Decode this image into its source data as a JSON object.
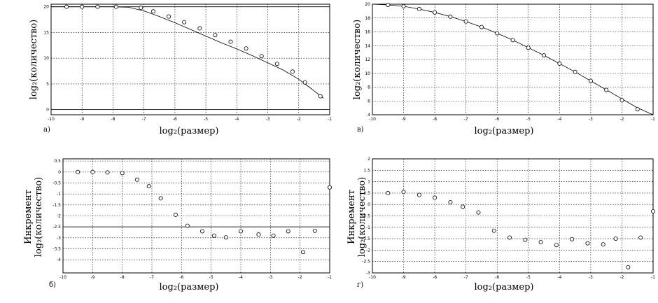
{
  "chart_data": [
    {
      "type": "line",
      "panel_label": "а)",
      "xlabel": "log₂(размер)",
      "ylabel": "log₂(количество)",
      "xlim": [
        -10,
        -1
      ],
      "ylim": [
        -1,
        20.5
      ],
      "xticks": [
        -10,
        -9,
        -8,
        -7,
        -6,
        -5,
        -4,
        -3,
        -2,
        -1
      ],
      "yticks": [
        0,
        5,
        10,
        15,
        20
      ],
      "xtick_labels": [
        "-10",
        "-9",
        "-8",
        "-7",
        "-6",
        "-5",
        "-4",
        "-3",
        "-2",
        "-1"
      ],
      "ytick_labels": [
        "0",
        "5",
        "10",
        "15",
        "20"
      ],
      "grid": true,
      "hlines": [
        20,
        0
      ],
      "series": [
        {
          "x": [
            -10,
            -9.5,
            -9,
            -8.5,
            -8,
            -7.5,
            -7,
            -6.5,
            -6,
            -5.5,
            -5,
            -4.5,
            -4,
            -3.5,
            -3,
            -2.5,
            -2,
            -1.6,
            -1.2
          ],
          "y": [
            20,
            20,
            20,
            20,
            20,
            19.9,
            19.2,
            18.1,
            16.9,
            15.6,
            14.3,
            13,
            11.8,
            10.5,
            9.1,
            7.7,
            5.9,
            4.1,
            2.2
          ]
        }
      ],
      "markers": {
        "x": [
          -9.5,
          -9,
          -8.5,
          -7.9,
          -7.1,
          -6.7,
          -6.2,
          -5.7,
          -5.2,
          -4.7,
          -4.2,
          -3.7,
          -3.2,
          -2.7,
          -2.2,
          -1.8,
          -1.3
        ],
        "y": [
          20,
          20,
          20,
          20,
          19.8,
          19.1,
          18.1,
          17,
          15.8,
          14.5,
          13.2,
          11.9,
          10.4,
          8.9,
          7.4,
          5.3,
          2.6
        ]
      }
    },
    {
      "type": "line",
      "panel_label": "в)",
      "xlabel": "log₂(размер)",
      "ylabel": "log₂(количество)",
      "xlim": [
        -10,
        -1
      ],
      "ylim": [
        4,
        20
      ],
      "xticks": [
        -10,
        -9,
        -8,
        -7,
        -6,
        -5,
        -4,
        -3,
        -2,
        -1
      ],
      "yticks": [
        4,
        6,
        8,
        10,
        12,
        14,
        16,
        18,
        20
      ],
      "xtick_labels": [
        "-10",
        "-9",
        "-8",
        "-7",
        "-6",
        "-5",
        "-4",
        "-3",
        "-2",
        "-1"
      ],
      "ytick_labels": [
        "4",
        "6",
        "8",
        "10",
        "12",
        "14",
        "16",
        "18",
        "20"
      ],
      "grid": true,
      "series": [
        {
          "x": [
            -10,
            -9.5,
            -9,
            -8.5,
            -8,
            -7.5,
            -7,
            -6.5,
            -6,
            -5.5,
            -5,
            -4.5,
            -4,
            -3.5,
            -3,
            -2.5,
            -2,
            -1.5,
            -1
          ],
          "y": [
            20,
            19.9,
            19.7,
            19.3,
            18.8,
            18.2,
            17.5,
            16.7,
            15.8,
            14.8,
            13.7,
            12.6,
            11.4,
            10.2,
            8.9,
            7.6,
            6.3,
            5,
            4
          ]
        }
      ],
      "markers": {
        "x": [
          -9.5,
          -9,
          -8.5,
          -8,
          -7.5,
          -7,
          -6.5,
          -6,
          -5.5,
          -5,
          -4.5,
          -4,
          -3.5,
          -3,
          -2.5,
          -2,
          -1.5
        ],
        "y": [
          19.9,
          19.7,
          19.3,
          18.8,
          18.2,
          17.5,
          16.7,
          15.8,
          14.8,
          13.7,
          12.6,
          11.4,
          10.2,
          8.9,
          7.6,
          6.1,
          4.8
        ]
      }
    },
    {
      "type": "scatter",
      "panel_label": "б)",
      "xlabel": "log₂(размер)",
      "ylabel": "Инкремент log₂(количество)",
      "xlim": [
        -10,
        -1
      ],
      "ylim": [
        -4.6,
        0.6
      ],
      "xticks": [
        -10,
        -9,
        -8,
        -7,
        -6,
        -5,
        -4,
        -3,
        -2,
        -1
      ],
      "yticks": [
        0.5,
        0,
        -0.5,
        -1,
        -1.5,
        -2,
        -2.5,
        -3,
        -3.5,
        -4
      ],
      "xtick_labels": [
        "-10",
        "-9",
        "-8",
        "-7",
        "-6",
        "-5",
        "-4",
        "-3",
        "-2",
        "-1"
      ],
      "ytick_labels": [
        "0.5",
        "0",
        "-0.5",
        "-1",
        "-1.5",
        "-2",
        "-2.5",
        "-3",
        "-3.5",
        "-4"
      ],
      "grid": true,
      "hlines": [
        -2.5
      ],
      "series": [
        {
          "x": [
            -9.5,
            -9,
            -8.5,
            -8,
            -7.5,
            -7.1,
            -6.7,
            -6.2,
            -5.8,
            -5.3,
            -4.9,
            -4.5,
            -4,
            -3.4,
            -2.9,
            -2.4,
            -1.9,
            -1.5,
            -1
          ],
          "y": [
            0,
            0,
            -0.02,
            -0.05,
            -0.35,
            -0.65,
            -1.2,
            -1.95,
            -2.45,
            -2.7,
            -2.9,
            -2.98,
            -2.7,
            -2.85,
            -2.9,
            -2.7,
            -3.65,
            -2.68,
            -0.7
          ]
        }
      ]
    },
    {
      "type": "scatter",
      "panel_label": "г)",
      "xlabel": "log₂(размер)",
      "ylabel": "Инкремент log₂(количество)",
      "xlim": [
        -10,
        -1
      ],
      "ylim": [
        -3,
        2
      ],
      "xticks": [
        -10,
        -9,
        -8,
        -7,
        -6,
        -5,
        -4,
        -3,
        -2,
        -1
      ],
      "yticks": [
        2,
        1.5,
        1,
        0.5,
        0,
        -0.5,
        -1,
        -1.5,
        -2,
        -2.5,
        -3
      ],
      "xtick_labels": [
        "-10",
        "-9",
        "-8",
        "-7",
        "-6",
        "-5",
        "-4",
        "-3",
        "-2",
        "-1"
      ],
      "ytick_labels": [
        "2",
        "1.5",
        "1",
        "0.5",
        "0",
        "-0.5",
        "-1",
        "-1.5",
        "-2",
        "-2.5",
        "-3"
      ],
      "grid": true,
      "series": [
        {
          "x": [
            -9.5,
            -9,
            -8.5,
            -8,
            -7.5,
            -7.1,
            -6.6,
            -6.1,
            -5.6,
            -5.1,
            -4.6,
            -4.1,
            -3.6,
            -3.1,
            -2.6,
            -2.2,
            -1.8,
            -1.4,
            -1
          ],
          "y": [
            0.5,
            0.55,
            0.42,
            0.3,
            0.1,
            -0.1,
            -0.35,
            -1.15,
            -1.45,
            -1.55,
            -1.65,
            -1.78,
            -1.52,
            -1.7,
            -1.75,
            -1.5,
            -2.75,
            -1.45,
            -0.3
          ]
        }
      ]
    }
  ]
}
